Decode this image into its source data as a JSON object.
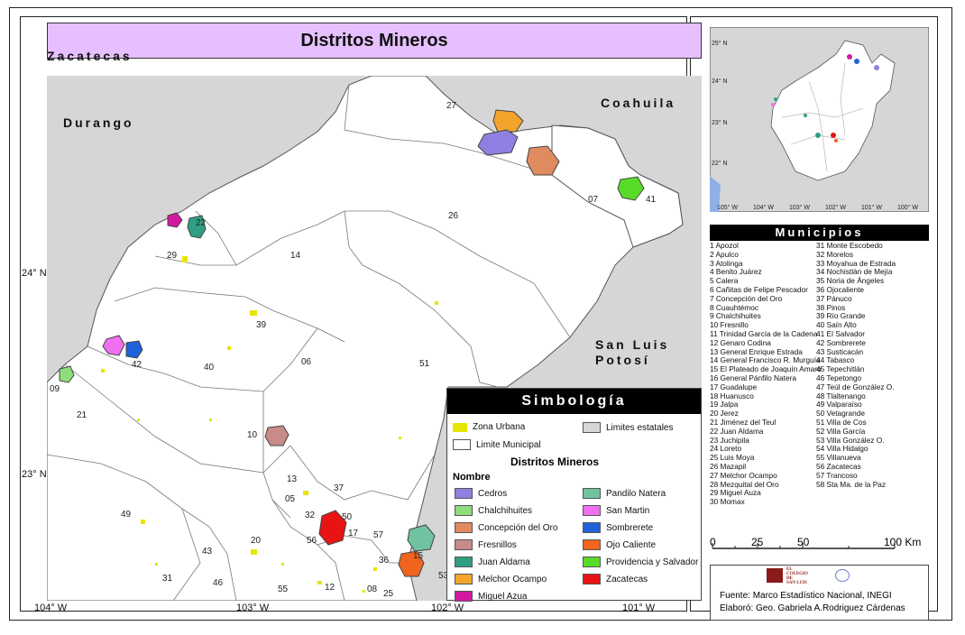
{
  "title": "Distritos Mineros",
  "states": {
    "zacatecas": "Zacatecas",
    "durango": "Durango",
    "coahuila": "Coahuila",
    "slp_line1": "San Luis",
    "slp_line2": "Potosí"
  },
  "axis_labels": {
    "lon": [
      "104° W",
      "103° W",
      "102° W",
      "101° W"
    ],
    "lat": [
      "24° N",
      "23° N"
    ],
    "inset_lat": [
      "25° N",
      "24° N",
      "23° N",
      "22° N"
    ],
    "inset_lon": [
      "105° W",
      "104° W",
      "103° W",
      "102° W",
      "101° W",
      "100° W"
    ]
  },
  "map_numbers": [
    "27",
    "26",
    "07",
    "41",
    "14",
    "22",
    "29",
    "39",
    "06",
    "40",
    "42",
    "09",
    "51",
    "10",
    "21",
    "13",
    "37",
    "05",
    "32",
    "50",
    "56",
    "17",
    "57",
    "36",
    "15",
    "53",
    "49",
    "20",
    "43",
    "31",
    "46",
    "55",
    "12",
    "08",
    "25"
  ],
  "legend": {
    "title": "Simbología",
    "zona_urbana": "Zona Urbana",
    "limites_estatales": "Limites estatales",
    "limite_municipal": "Limite Municipal",
    "distritos_title": "Distritos Mineros",
    "nombre": "Nombre",
    "left": [
      {
        "name": "Cedros",
        "color": "#8e7fe0"
      },
      {
        "name": "Chalchihuites",
        "color": "#8edc7a"
      },
      {
        "name": "Concepción del Oro",
        "color": "#e08a60"
      },
      {
        "name": "Fresnillos",
        "color": "#c98a8a"
      },
      {
        "name": "Juan Aldama",
        "color": "#2f9e82"
      },
      {
        "name": "Melchor Ocampo",
        "color": "#f2a52a"
      },
      {
        "name": "Miguel Azua",
        "color": "#d21aa0"
      }
    ],
    "right": [
      {
        "name": "Pandilo Natera",
        "color": "#6fc3a0"
      },
      {
        "name": "San Martin",
        "color": "#f06ef0"
      },
      {
        "name": "Sombrerete",
        "color": "#1e64d8"
      },
      {
        "name": "Ojo Caliente",
        "color": "#f0641e"
      },
      {
        "name": "Providencia y Salvador",
        "color": "#58dc2a"
      },
      {
        "name": "Zacatecas",
        "color": "#e81414"
      }
    ]
  },
  "municipios": {
    "title": "Municipios",
    "col1": [
      "1 Apozol",
      "2 Apulco",
      "3 Atolinga",
      "4 Benito Juárez",
      "5 Calera",
      "6 Cañitas de Felipe Pescador",
      "7 Concepción del Oro",
      "8 Cuauhtémoc",
      "9 Chalchihuites",
      "10 Fresnillo",
      "11 Trinidad García de la Cadena",
      "12 Genaro Codina",
      "13 General Enrique Estrada",
      "14 General Francisco R. Murguía",
      "15 El Plateado de Joaquín Amaro",
      "16 General Pánfilo Natera",
      "17 Guadalupe",
      "18 Huanusco",
      "19 Jalpa",
      "20 Jerez",
      "21 Jiménez del Teul",
      "22 Juan Aldama",
      "23 Juchipila",
      "24 Loreto",
      "25 Luis Moya",
      "26 Mazapil",
      "27 Melchor Ocampo",
      "28 Mezquital del Oro",
      "29 Miguel Auza",
      "30 Momax"
    ],
    "col2": [
      "31 Monte Escobedo",
      "32 Morelos",
      "33 Moyahua de Estrada",
      "34 Nochistlán de Mejía",
      "35 Noria de Ángeles",
      "36 Ojocaliente",
      "37 Pánuco",
      "38 Pinos",
      "39 Río Grande",
      "40 Saín Alto",
      "41 El Salvador",
      "42 Sombrerete",
      "43 Susticacán",
      "44 Tabasco",
      "45 Tepechitlán",
      "46 Tepetongo",
      "47 Teúl de González O.",
      "48 Tlaltenango",
      "49 Valparaíso",
      "50 Vetagrande",
      "51 Villa de Cos",
      "52 Villa García",
      "53 Villa González O.",
      "54 Villa Hidalgo",
      "55 Villanueva",
      "56 Zacatecas",
      "57 Trancoso",
      "58 Sta Ma. de la Paz"
    ]
  },
  "scale": {
    "labels": [
      "0",
      "25",
      "50",
      "100 Km"
    ]
  },
  "credits": {
    "logo_line1": "EL",
    "logo_line2": "COLEGIO",
    "logo_line3": "DE",
    "logo_line4": "SAN LUIS",
    "fuente": "Fuente: Marco Estadístico  Nacional, INEGI",
    "elaboro": "Elaboró: Geo. Gabriela A.Rodriguez Cárdenas"
  }
}
